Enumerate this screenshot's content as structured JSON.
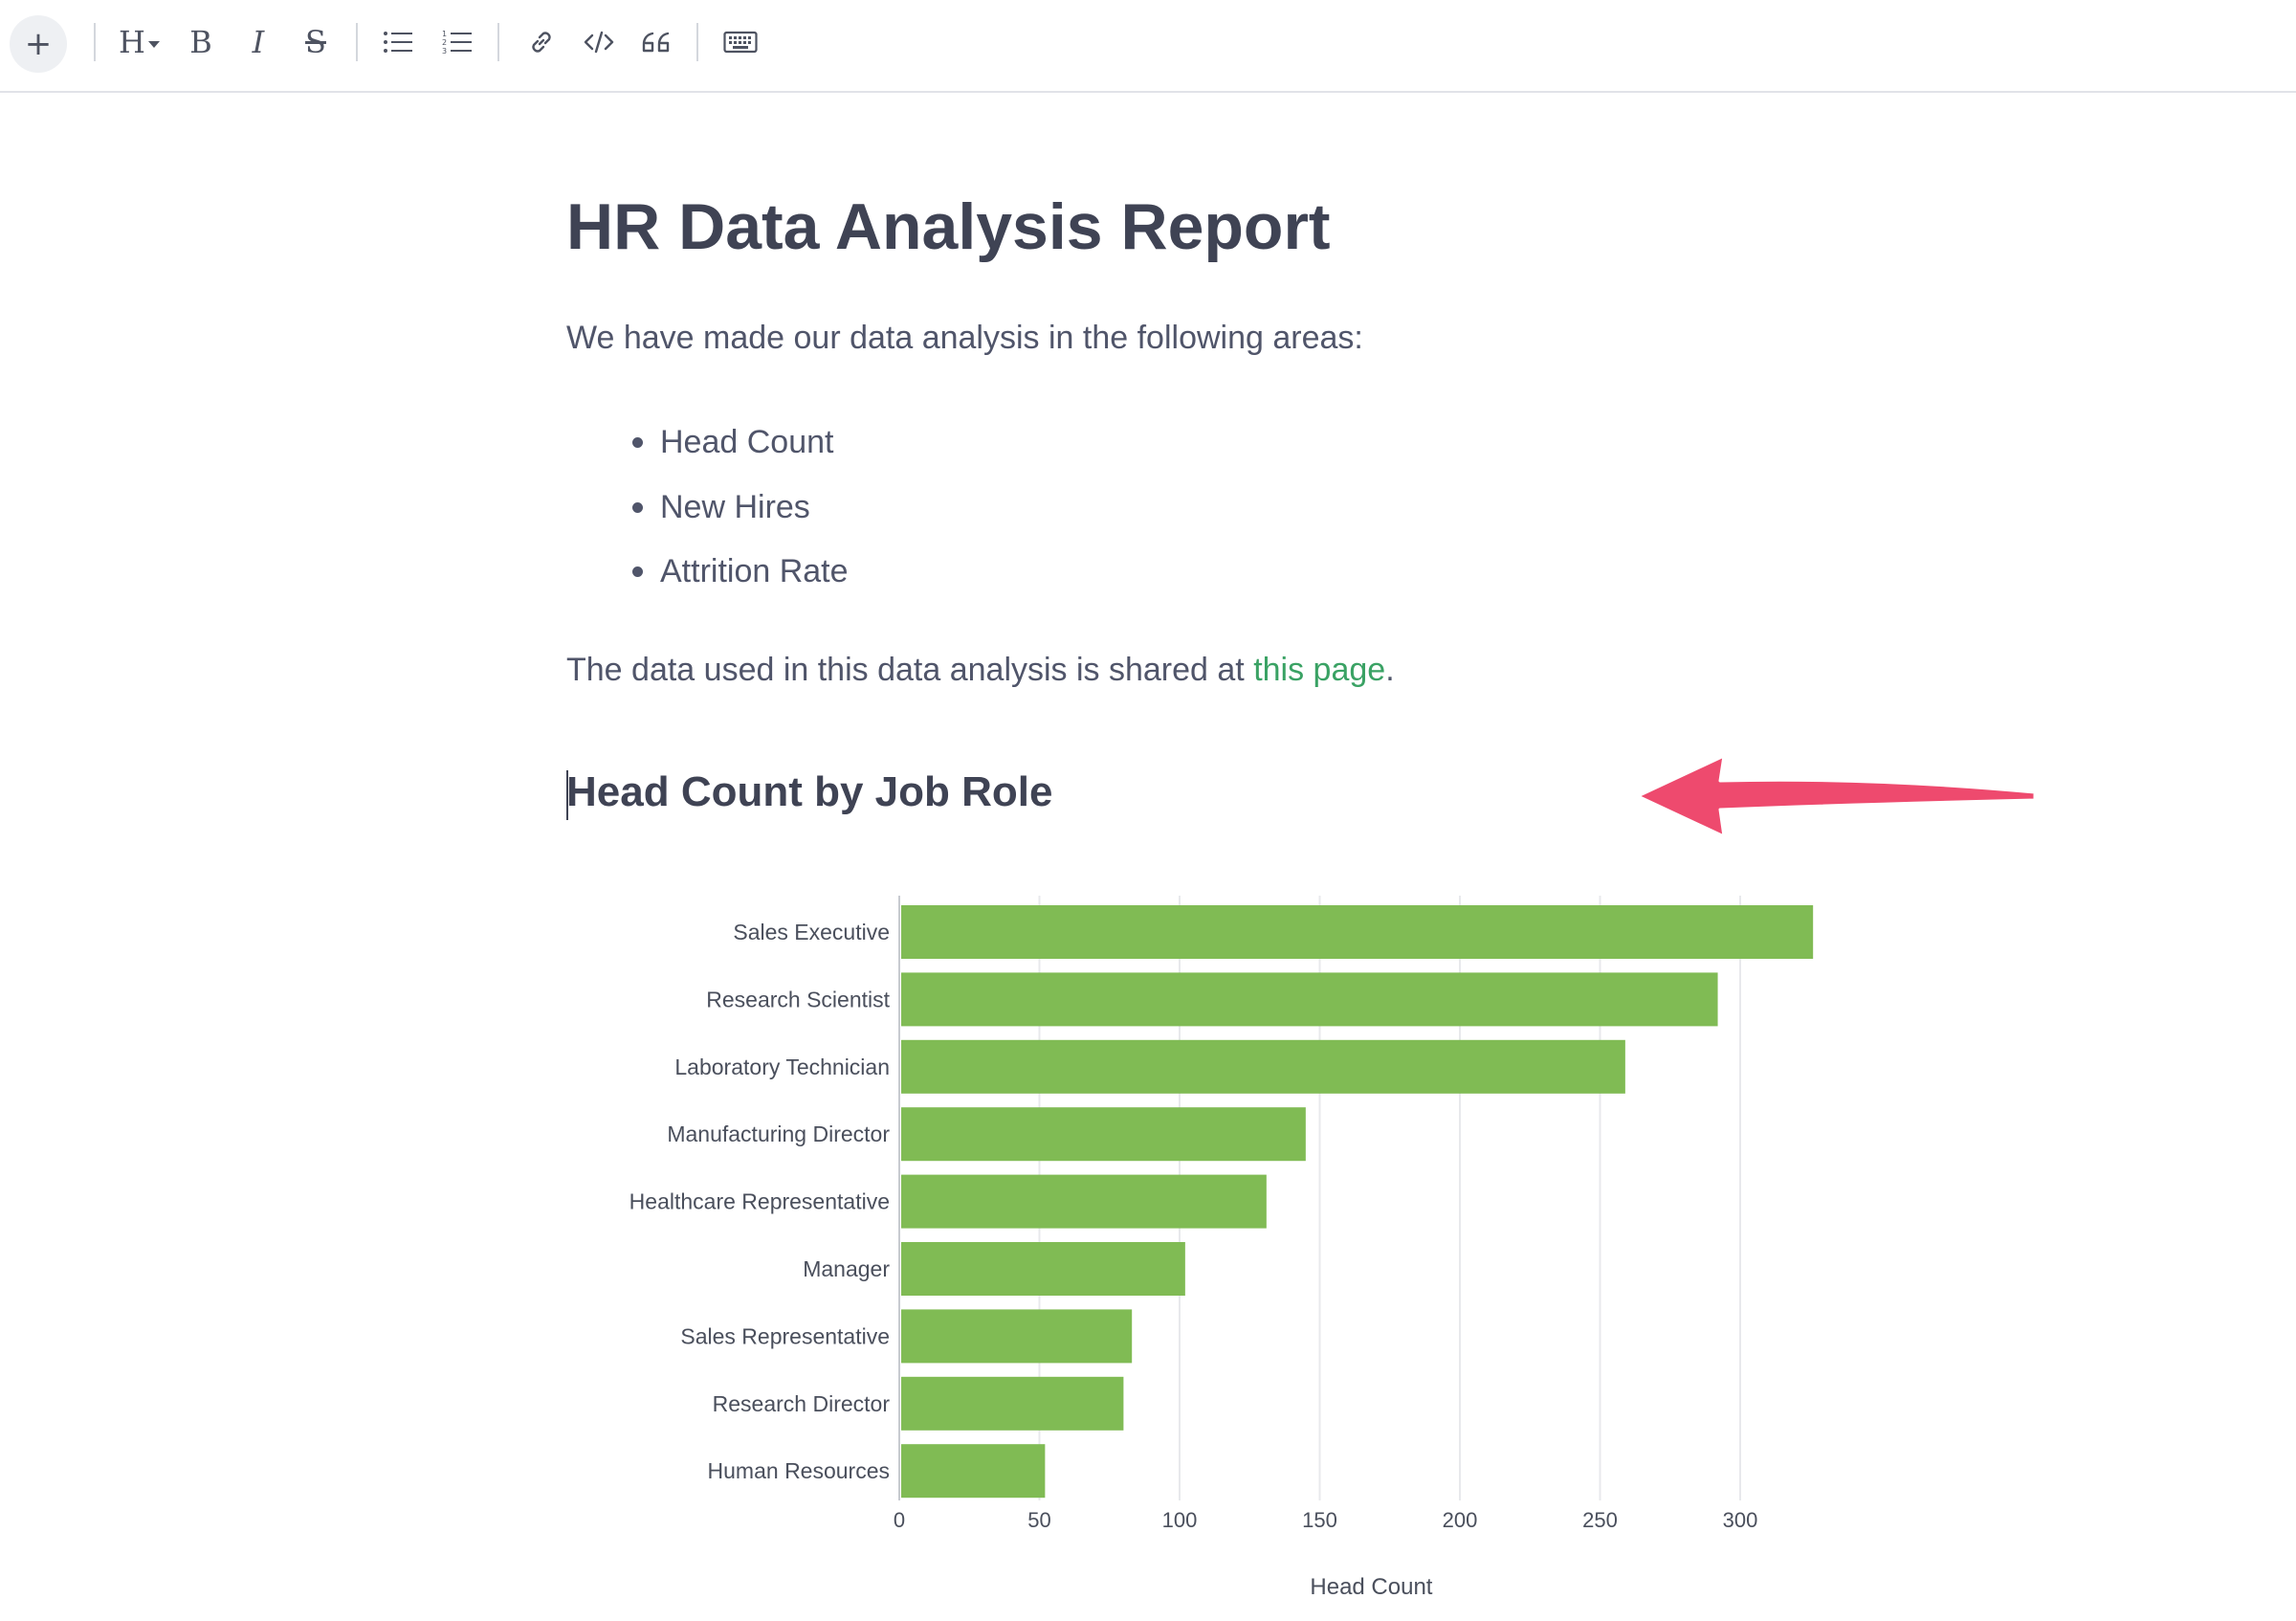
{
  "toolbar": {
    "add_label": "+",
    "heading_label": "H",
    "bold_label": "B",
    "italic_label": "I",
    "strike_label": "S"
  },
  "document": {
    "title": "HR Data Analysis Report",
    "intro": "We have made our data analysis in the following areas:",
    "areas": [
      "Head Count",
      "New Hires",
      "Attrition Rate"
    ],
    "shared_prefix": "The data used in this data analysis is shared at ",
    "shared_link": "this page",
    "shared_suffix": ".",
    "section_heading": "Head Count by Job Role"
  },
  "colors": {
    "bar": "#80bb54",
    "link": "#3aa264",
    "arrow": "#ee4a6e"
  },
  "chart_data": {
    "type": "bar",
    "orientation": "horizontal",
    "categories": [
      "Sales Executive",
      "Research Scientist",
      "Laboratory Technician",
      "Manufacturing Director",
      "Healthcare Representative",
      "Manager",
      "Sales Representative",
      "Research Director",
      "Human Resources"
    ],
    "values": [
      326,
      292,
      259,
      145,
      131,
      102,
      83,
      80,
      52
    ],
    "xlabel": "Head Count",
    "ylabel": "",
    "xlim": [
      0,
      330
    ],
    "xticks": [
      0,
      50,
      100,
      150,
      200,
      250,
      300
    ],
    "grid": true
  }
}
